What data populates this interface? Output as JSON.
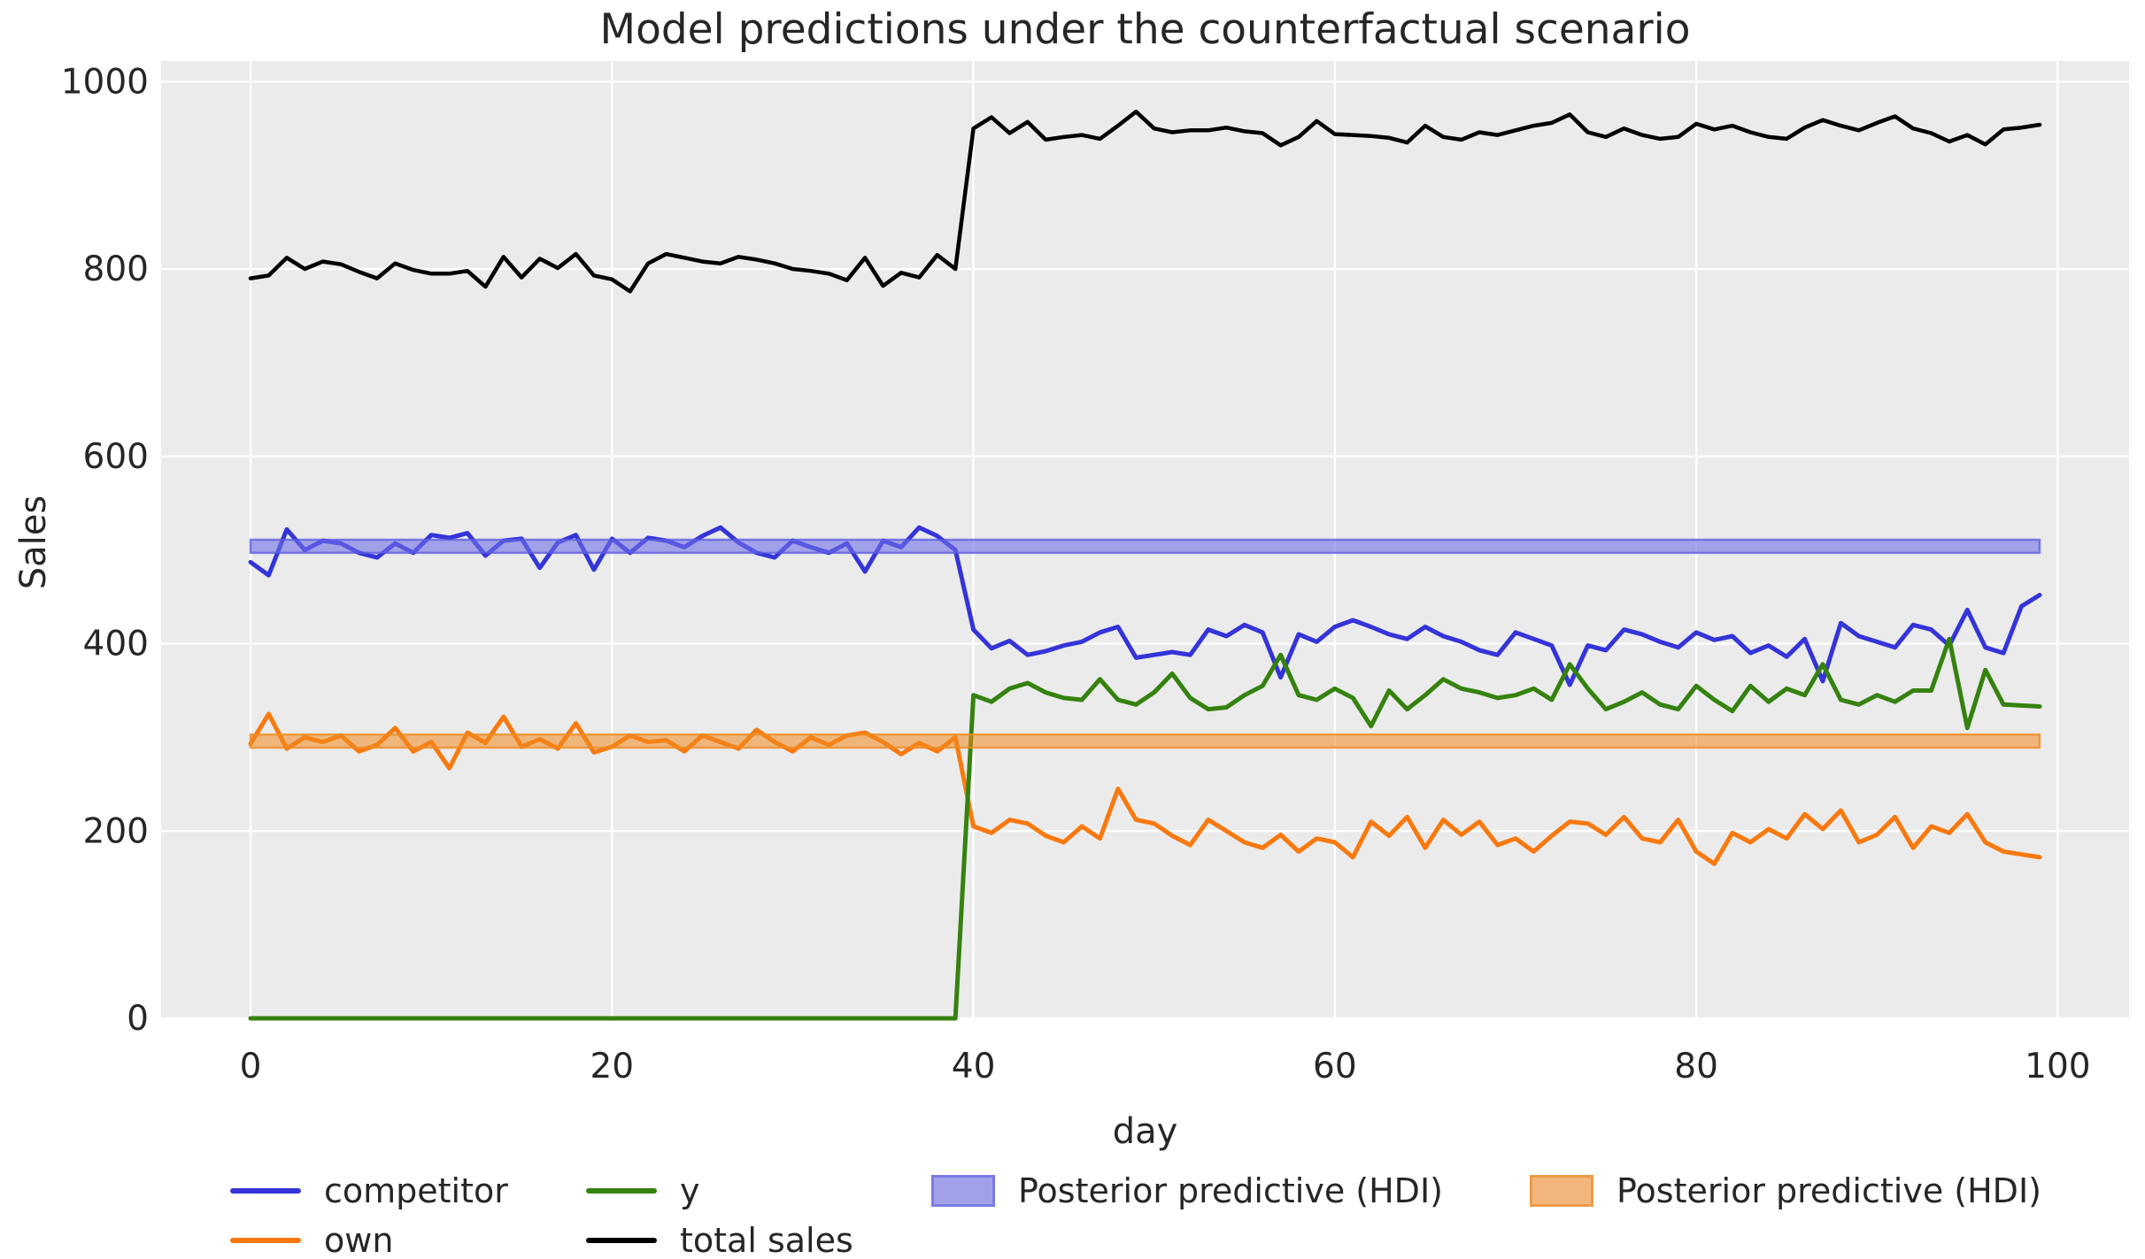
{
  "title": "Model predictions under the counterfactual scenario",
  "axes": {
    "xlabel": "day",
    "ylabel": "Sales",
    "x_ticks": [
      0,
      20,
      40,
      60,
      80,
      100
    ],
    "y_ticks": [
      0,
      200,
      400,
      600,
      800,
      1000
    ],
    "xlim": [
      -4.95,
      103.95
    ],
    "ylim": [
      0,
      1022
    ],
    "grid": true
  },
  "colors": {
    "figure_background": "#ffffff",
    "plot_background": "#ebebeb",
    "grid": "#ffffff",
    "text": "#262626",
    "competitor": "#3434d9",
    "own": "#f9790f",
    "y": "#35820f",
    "total_sales": "#000000",
    "hdi_blue_fill": "#6f6fe8",
    "hdi_blue_edge": "#5a5ae0",
    "hdi_orange_fill": "#f38b1f",
    "hdi_orange_edge": "#ef8b22"
  },
  "legend": {
    "entries": [
      {
        "label": "competitor",
        "type": "line",
        "swatch_color": "#3434d9"
      },
      {
        "label": "own",
        "type": "line",
        "swatch_color": "#f9790f"
      },
      {
        "label": "y",
        "type": "line",
        "swatch_color": "#35820f"
      },
      {
        "label": "total sales",
        "type": "line",
        "swatch_color": "#000000"
      },
      {
        "label": "Posterior predictive (HDI)",
        "type": "patch",
        "swatch_color": "#a1a1e9",
        "swatch_border": "#7a7ae4"
      },
      {
        "label": "Posterior predictive (HDI)",
        "type": "patch",
        "swatch_color": "#f2b67d",
        "swatch_border": "#ee9a45"
      }
    ]
  },
  "chart_data": {
    "type": "line",
    "title": "Model predictions under the counterfactual scenario",
    "xlabel": "day",
    "ylabel": "Sales",
    "legend_position": "bottom",
    "x": [
      0,
      1,
      2,
      3,
      4,
      5,
      6,
      7,
      8,
      9,
      10,
      11,
      12,
      13,
      14,
      15,
      16,
      17,
      18,
      19,
      20,
      21,
      22,
      23,
      24,
      25,
      26,
      27,
      28,
      29,
      30,
      31,
      32,
      33,
      34,
      35,
      36,
      37,
      38,
      39,
      40,
      41,
      42,
      43,
      44,
      45,
      46,
      47,
      48,
      49,
      50,
      51,
      52,
      53,
      54,
      55,
      56,
      57,
      58,
      59,
      60,
      61,
      62,
      63,
      64,
      65,
      66,
      67,
      68,
      69,
      70,
      71,
      72,
      73,
      74,
      75,
      76,
      77,
      78,
      79,
      80,
      81,
      82,
      83,
      84,
      85,
      86,
      87,
      88,
      89,
      90,
      91,
      92,
      93,
      94,
      95,
      96,
      97,
      98,
      99
    ],
    "series": [
      {
        "name": "competitor",
        "color": "#3434d9",
        "values": [
          487,
          473,
          522,
          500,
          510,
          507,
          497,
          492,
          507,
          497,
          516,
          513,
          518,
          494,
          510,
          512,
          481,
          508,
          516,
          479,
          512,
          497,
          513,
          510,
          503,
          515,
          524,
          508,
          497,
          492,
          510,
          503,
          497,
          507,
          477,
          510,
          503,
          524,
          515,
          500,
          415,
          395,
          403,
          388,
          392,
          398,
          402,
          412,
          418,
          385,
          388,
          391,
          388,
          415,
          408,
          420,
          412,
          364,
          410,
          402,
          418,
          425,
          418,
          410,
          405,
          418,
          408,
          402,
          393,
          388,
          412,
          405,
          398,
          356,
          398,
          393,
          415,
          410,
          402,
          396,
          412,
          404,
          408,
          390,
          398,
          386,
          405,
          360,
          422,
          408,
          402,
          396,
          420,
          415,
          398,
          436,
          396,
          390,
          440,
          452
        ]
      },
      {
        "name": "own",
        "color": "#f9790f",
        "values": [
          293,
          325,
          288,
          300,
          295,
          302,
          285,
          292,
          310,
          285,
          295,
          267,
          305,
          294,
          322,
          290,
          298,
          288,
          315,
          284,
          290,
          302,
          295,
          297,
          285,
          302,
          295,
          288,
          308,
          295,
          285,
          300,
          292,
          302,
          305,
          295,
          282,
          294,
          285,
          300,
          205,
          198,
          212,
          208,
          195,
          188,
          205,
          192,
          245,
          212,
          208,
          195,
          185,
          212,
          200,
          188,
          182,
          196,
          178,
          192,
          188,
          172,
          210,
          195,
          215,
          182,
          212,
          196,
          210,
          185,
          192,
          178,
          195,
          210,
          208,
          196,
          215,
          192,
          188,
          212,
          178,
          165,
          198,
          188,
          202,
          192,
          218,
          202,
          222,
          188,
          196,
          215,
          182,
          205,
          198,
          218,
          188,
          178,
          175,
          172
        ]
      },
      {
        "name": "y",
        "color": "#35820f",
        "values": [
          0,
          0,
          0,
          0,
          0,
          0,
          0,
          0,
          0,
          0,
          0,
          0,
          0,
          0,
          0,
          0,
          0,
          0,
          0,
          0,
          0,
          0,
          0,
          0,
          0,
          0,
          0,
          0,
          0,
          0,
          0,
          0,
          0,
          0,
          0,
          0,
          0,
          0,
          0,
          0,
          345,
          338,
          352,
          358,
          348,
          342,
          340,
          362,
          340,
          335,
          348,
          368,
          342,
          330,
          332,
          345,
          355,
          388,
          345,
          340,
          352,
          342,
          312,
          350,
          330,
          345,
          362,
          352,
          348,
          342,
          345,
          352,
          340,
          378,
          352,
          330,
          338,
          348,
          335,
          330,
          355,
          340,
          328,
          355,
          338,
          352,
          345,
          378,
          340,
          335,
          345,
          338,
          350,
          350,
          405,
          310,
          372,
          335,
          334,
          333
        ]
      },
      {
        "name": "total sales",
        "color": "#000000",
        "values": [
          790,
          793,
          812,
          800,
          808,
          805,
          797,
          790,
          806,
          799,
          795,
          795,
          798,
          781,
          813,
          791,
          811,
          801,
          816,
          793,
          789,
          776,
          806,
          816,
          812,
          808,
          806,
          813,
          810,
          806,
          800,
          798,
          795,
          788,
          812,
          782,
          796,
          791,
          815,
          800,
          950,
          962,
          945,
          957,
          938,
          941,
          943,
          939,
          953,
          968,
          950,
          946,
          948,
          948,
          951,
          947,
          945,
          932,
          941,
          958,
          944,
          943,
          942,
          940,
          935,
          953,
          941,
          938,
          946,
          943,
          948,
          953,
          956,
          965,
          946,
          941,
          950,
          943,
          939,
          941,
          955,
          949,
          953,
          946,
          941,
          939,
          951,
          959,
          953,
          948,
          956,
          963,
          950,
          945,
          936,
          943,
          933,
          949,
          951,
          954
        ]
      }
    ],
    "hdi_bands": [
      {
        "name": "Posterior predictive (HDI)",
        "series": "competitor",
        "lower": 497,
        "upper": 511,
        "x_start": 0,
        "x_end": 99,
        "fill": "#6f6fe8",
        "fill_opacity": 0.6,
        "edge": "#5a5ae0",
        "edge_opacity": 0.75
      },
      {
        "name": "Posterior predictive (HDI)",
        "series": "own",
        "lower": 289,
        "upper": 303,
        "x_start": 0,
        "x_end": 99,
        "fill": "#f38b1f",
        "fill_opacity": 0.55,
        "edge": "#ef8b22",
        "edge_opacity": 0.8
      }
    ]
  }
}
